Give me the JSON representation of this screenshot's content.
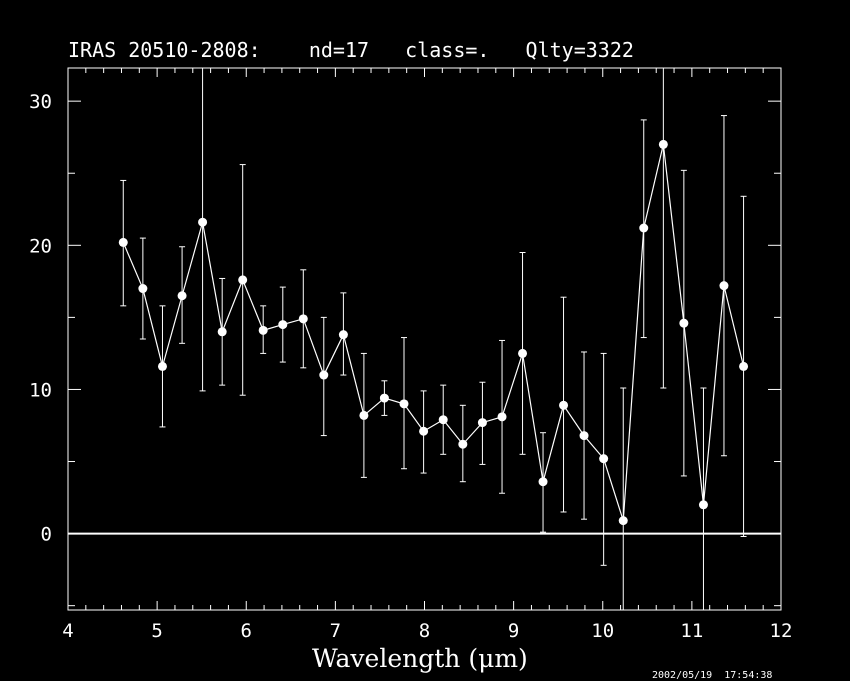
{
  "chart_data": {
    "type": "scatter",
    "title": "IRAS 20510-2808:    nd=17   class=.   Qlty=3322",
    "xlabel": "Wavelength (μm)",
    "ylabel": "",
    "xlim": [
      4,
      12
    ],
    "ylim": [
      -5.3,
      32.3
    ],
    "xticks": [
      4,
      5,
      6,
      7,
      8,
      9,
      10,
      11,
      12
    ],
    "yticks": [
      0,
      10,
      20,
      30
    ],
    "zero_line": 0,
    "grid": false,
    "timestamp": "2002/05/19  17:54:38",
    "series": [
      {
        "connected": true,
        "x": [
          4.62,
          4.84,
          5.06,
          5.28,
          5.51,
          5.73,
          5.96,
          6.19,
          6.41,
          6.64,
          6.87,
          7.09,
          7.32,
          7.55,
          7.77,
          7.99,
          8.21,
          8.43,
          8.65,
          8.87,
          9.1,
          9.33,
          9.56,
          9.79,
          10.01,
          10.23,
          10.46,
          10.68,
          10.91,
          11.13,
          11.36,
          11.58
        ],
        "y": [
          20.2,
          17.0,
          11.6,
          16.5,
          21.6,
          14.0,
          17.6,
          14.1,
          14.5,
          14.9,
          11.0,
          13.8,
          8.2,
          9.4,
          9.0,
          7.1,
          7.9,
          6.2,
          7.7,
          8.1,
          12.5,
          3.6,
          8.9,
          6.8,
          5.2,
          0.9,
          21.2,
          27.0,
          14.6,
          2.0,
          17.2,
          11.6
        ],
        "err_low": [
          15.8,
          13.5,
          7.4,
          13.2,
          9.9,
          10.3,
          9.6,
          12.5,
          11.9,
          11.5,
          6.8,
          11.0,
          3.9,
          8.2,
          4.5,
          4.2,
          5.5,
          3.6,
          4.8,
          2.8,
          5.5,
          0.1,
          1.5,
          1.0,
          -2.2,
          -5.3,
          13.6,
          10.1,
          4.0,
          -5.3,
          5.4,
          -0.2
        ],
        "err_high": [
          24.5,
          20.5,
          15.8,
          19.9,
          32.3,
          17.7,
          25.6,
          15.8,
          17.1,
          18.3,
          15.0,
          16.7,
          12.5,
          10.6,
          13.6,
          9.9,
          10.3,
          8.9,
          10.5,
          13.4,
          19.5,
          7.0,
          16.4,
          12.6,
          12.5,
          10.1,
          28.7,
          32.3,
          25.2,
          10.1,
          29.0,
          23.4
        ]
      }
    ]
  }
}
